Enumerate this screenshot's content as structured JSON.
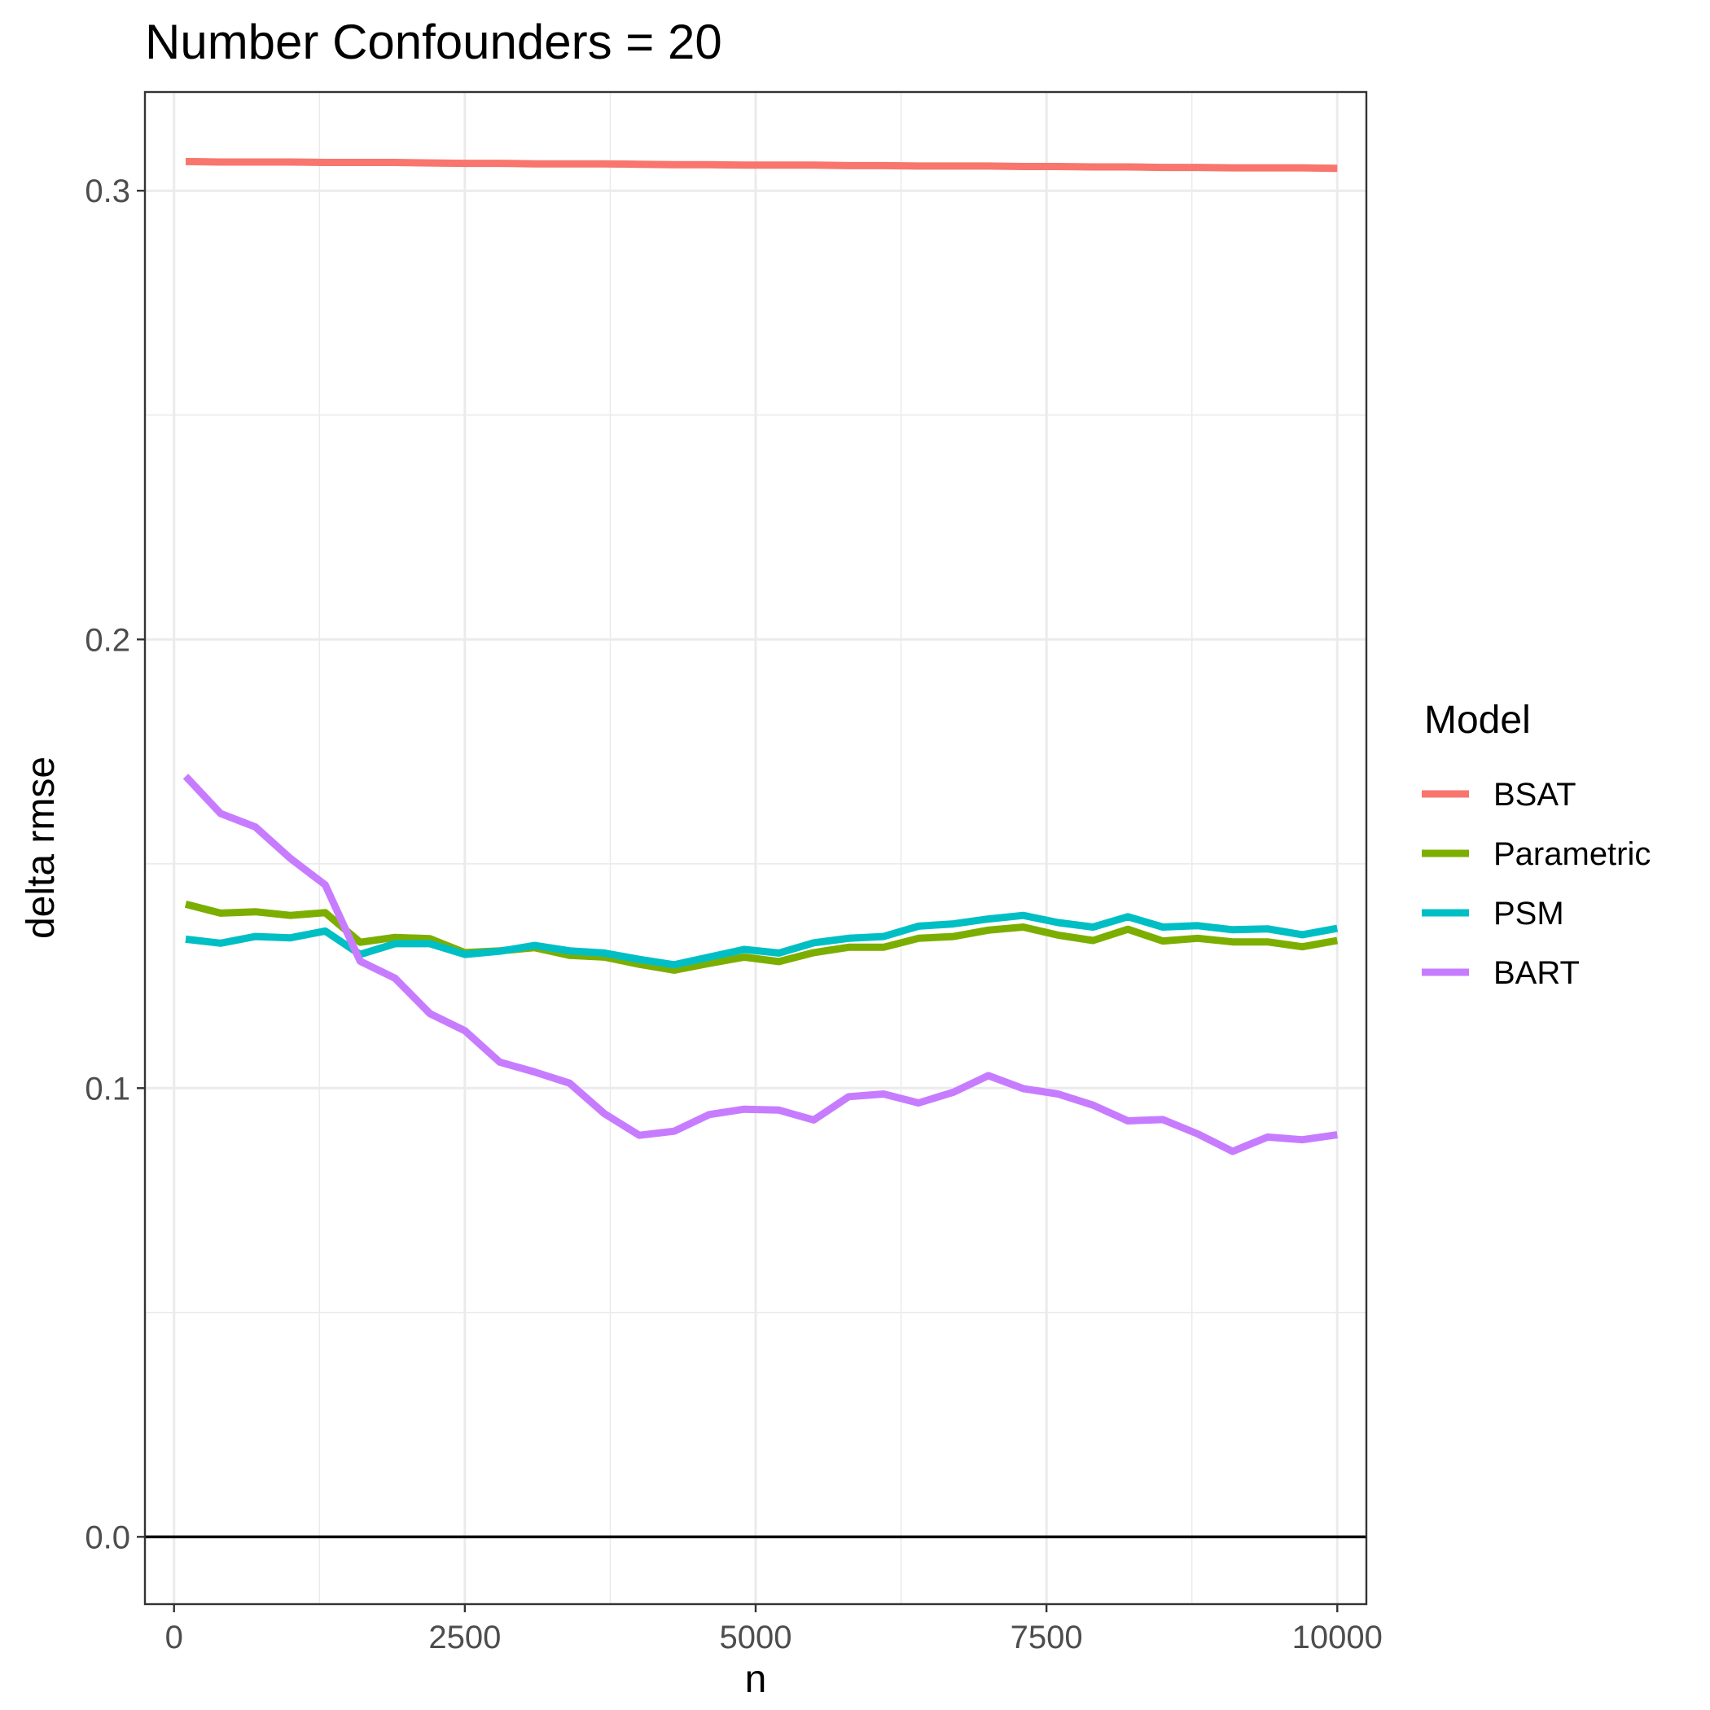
{
  "chart_data": {
    "type": "line",
    "title": "Number Confounders = 20",
    "xlabel": "n",
    "ylabel": "delta rmse",
    "xlim": [
      -250,
      10250
    ],
    "ylim": [
      -0.015,
      0.322
    ],
    "x_ticks": [
      0,
      2500,
      5000,
      7500,
      10000
    ],
    "x_tick_labels": [
      "0",
      "2500",
      "5000",
      "7500",
      "10000"
    ],
    "y_ticks": [
      0.0,
      0.1,
      0.2,
      0.3
    ],
    "y_tick_labels": [
      "0.0",
      "0.1",
      "0.2",
      "0.3"
    ],
    "grid": true,
    "reference_line": {
      "y": 0
    },
    "legend": {
      "title": "Model",
      "position": "right"
    },
    "x": [
      100,
      400,
      700,
      1000,
      1300,
      1600,
      1900,
      2200,
      2500,
      2800,
      3100,
      3400,
      3700,
      4000,
      4300,
      4600,
      4900,
      5200,
      5500,
      5800,
      6100,
      6400,
      6700,
      7000,
      7300,
      7600,
      7900,
      8200,
      8500,
      8800,
      9100,
      9400,
      9700,
      10000
    ],
    "series": [
      {
        "name": "BSAT",
        "color": "#F8766D",
        "values": [
          0.3065,
          0.3064,
          0.3064,
          0.3064,
          0.3063,
          0.3063,
          0.3063,
          0.3062,
          0.3061,
          0.3061,
          0.306,
          0.306,
          0.306,
          0.3059,
          0.3058,
          0.3058,
          0.3057,
          0.3057,
          0.3057,
          0.3056,
          0.3056,
          0.3055,
          0.3055,
          0.3055,
          0.3054,
          0.3054,
          0.3053,
          0.3053,
          0.3052,
          0.3052,
          0.3051,
          0.3051,
          0.3051,
          0.305
        ]
      },
      {
        "name": "Parametric",
        "color": "#7CAE00",
        "values": [
          0.141,
          0.139,
          0.1393,
          0.1385,
          0.1391,
          0.1325,
          0.1336,
          0.1333,
          0.1302,
          0.1306,
          0.1313,
          0.1296,
          0.1292,
          0.1276,
          0.1263,
          0.1278,
          0.1292,
          0.1282,
          0.1302,
          0.1314,
          0.1314,
          0.1334,
          0.1338,
          0.1352,
          0.1359,
          0.1341,
          0.1329,
          0.1354,
          0.1328,
          0.1334,
          0.1326,
          0.1326,
          0.1315,
          0.1329
        ]
      },
      {
        "name": "PSM",
        "color": "#00BFC4",
        "values": [
          0.1332,
          0.1323,
          0.1338,
          0.1335,
          0.135,
          0.1298,
          0.1322,
          0.1322,
          0.1298,
          0.1305,
          0.1318,
          0.1306,
          0.1301,
          0.1287,
          0.1275,
          0.1292,
          0.1309,
          0.1301,
          0.1324,
          0.1334,
          0.1338,
          0.1361,
          0.1366,
          0.1377,
          0.1385,
          0.1369,
          0.1359,
          0.1382,
          0.1359,
          0.1362,
          0.1353,
          0.1355,
          0.1342,
          0.1356
        ]
      },
      {
        "name": "BART",
        "color": "#C77CFF",
        "values": [
          0.1695,
          0.1612,
          0.1582,
          0.1512,
          0.1453,
          0.1283,
          0.1245,
          0.1166,
          0.1128,
          0.1058,
          0.1036,
          0.1011,
          0.0943,
          0.0895,
          0.0904,
          0.0941,
          0.0953,
          0.0951,
          0.0929,
          0.0981,
          0.0987,
          0.0967,
          0.0991,
          0.1028,
          0.0999,
          0.0987,
          0.0962,
          0.0927,
          0.093,
          0.0898,
          0.0859,
          0.0891,
          0.0885,
          0.0896
        ]
      }
    ]
  }
}
